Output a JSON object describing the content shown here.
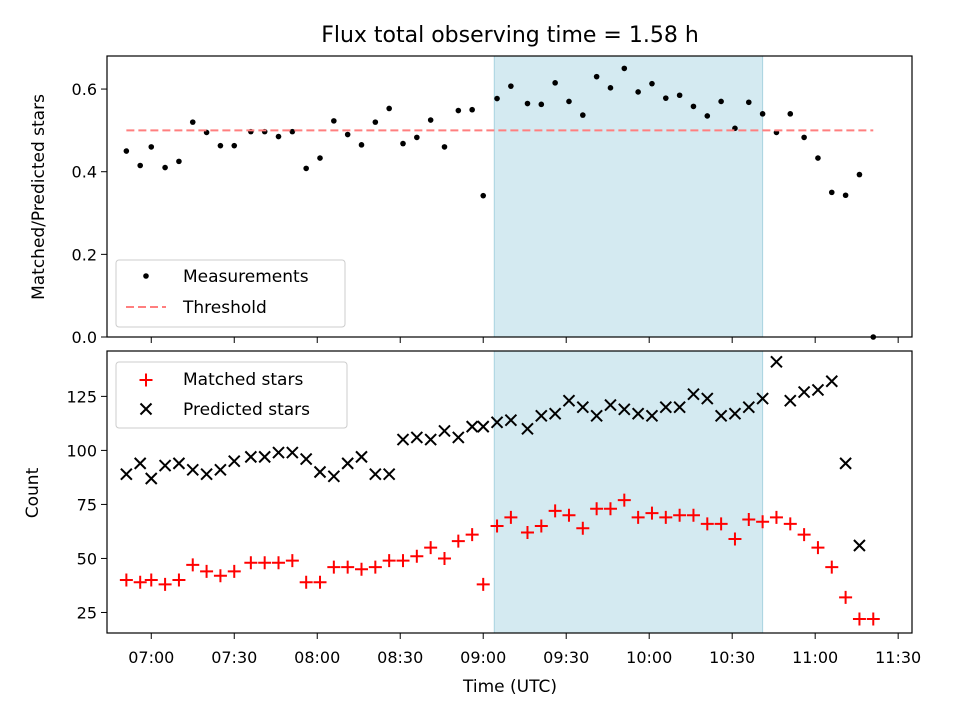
{
  "chart_data": [
    {
      "type": "scatter",
      "title": "Flux total observing time = 1.58 h",
      "xlabel": "",
      "ylabel": "Matched/Predicted stars",
      "xlim": [
        "06:44",
        "11:35"
      ],
      "ylim": [
        0,
        0.68
      ],
      "yticks": [
        0.0,
        0.2,
        0.4,
        0.6
      ],
      "ytick_labels": [
        "0.0",
        "0.2",
        "0.4",
        "0.6"
      ],
      "shaded_span": {
        "x_start": "09:04",
        "x_end": "10:41",
        "color": "#d4eaf1"
      },
      "legend_position": "lower left",
      "series": [
        {
          "name": "Measurements",
          "marker": "dot",
          "color": "#000000",
          "x": [
            "06:51",
            "06:56",
            "07:00",
            "07:05",
            "07:10",
            "07:15",
            "07:20",
            "07:25",
            "07:30",
            "07:36",
            "07:41",
            "07:46",
            "07:51",
            "07:56",
            "08:01",
            "08:06",
            "08:11",
            "08:16",
            "08:21",
            "08:26",
            "08:31",
            "08:36",
            "08:41",
            "08:46",
            "08:51",
            "08:56",
            "09:00",
            "09:05",
            "09:10",
            "09:16",
            "09:21",
            "09:26",
            "09:31",
            "09:36",
            "09:41",
            "09:46",
            "09:51",
            "09:56",
            "10:01",
            "10:06",
            "10:11",
            "10:16",
            "10:21",
            "10:26",
            "10:31",
            "10:36",
            "10:41",
            "10:46",
            "10:51",
            "10:56",
            "11:01",
            "11:06",
            "11:11",
            "11:16",
            "11:21"
          ],
          "y": [
            0.45,
            0.415,
            0.46,
            0.41,
            0.425,
            0.52,
            0.495,
            0.463,
            0.463,
            0.497,
            0.497,
            0.485,
            0.497,
            0.408,
            0.433,
            0.523,
            0.49,
            0.465,
            0.52,
            0.553,
            0.468,
            0.483,
            0.525,
            0.46,
            0.548,
            0.55,
            0.342,
            0.577,
            0.607,
            0.565,
            0.563,
            0.615,
            0.57,
            0.537,
            0.63,
            0.603,
            0.65,
            0.593,
            0.613,
            0.578,
            0.585,
            0.558,
            0.535,
            0.57,
            0.505,
            0.568,
            0.54,
            0.495,
            0.54,
            0.483,
            0.433,
            0.35,
            0.343,
            0.393,
            0.0
          ]
        },
        {
          "name": "Threshold",
          "style": "dashed-line",
          "color": "#ff7f7f",
          "x": [
            "06:51",
            "11:21"
          ],
          "y": [
            0.5,
            0.5
          ]
        }
      ]
    },
    {
      "type": "scatter",
      "xlabel": "Time (UTC)",
      "ylabel": "Count",
      "xlim": [
        "06:44",
        "11:35"
      ],
      "ylim": [
        15.5,
        146
      ],
      "xticks": [
        "07:00",
        "07:30",
        "08:00",
        "08:30",
        "09:00",
        "09:30",
        "10:00",
        "10:30",
        "11:00",
        "11:30"
      ],
      "yticks": [
        25,
        50,
        75,
        100,
        125
      ],
      "ytick_labels": [
        "25",
        "50",
        "75",
        "100",
        "125"
      ],
      "shaded_span": {
        "x_start": "09:04",
        "x_end": "10:41",
        "color": "#d4eaf1"
      },
      "legend_position": "upper left",
      "series": [
        {
          "name": "Matched stars",
          "marker": "plus",
          "color": "#ff0000",
          "x": [
            "06:51",
            "06:56",
            "07:00",
            "07:05",
            "07:10",
            "07:15",
            "07:20",
            "07:25",
            "07:30",
            "07:36",
            "07:41",
            "07:46",
            "07:51",
            "07:56",
            "08:01",
            "08:06",
            "08:11",
            "08:16",
            "08:21",
            "08:26",
            "08:31",
            "08:36",
            "08:41",
            "08:46",
            "08:51",
            "08:56",
            "09:00",
            "09:05",
            "09:10",
            "09:16",
            "09:21",
            "09:26",
            "09:31",
            "09:36",
            "09:41",
            "09:46",
            "09:51",
            "09:56",
            "10:01",
            "10:06",
            "10:11",
            "10:16",
            "10:21",
            "10:26",
            "10:31",
            "10:36",
            "10:41",
            "10:46",
            "10:51",
            "10:56",
            "11:01",
            "11:06",
            "11:11",
            "11:16",
            "11:21"
          ],
          "y": [
            40,
            39,
            40,
            38,
            40,
            47,
            44,
            42,
            44,
            48,
            48,
            48,
            49,
            39,
            39,
            46,
            46,
            45,
            46,
            49,
            49,
            51,
            55,
            50,
            58,
            61,
            38,
            65,
            69,
            62,
            65,
            72,
            70,
            64,
            73,
            73,
            77,
            69,
            71,
            69,
            70,
            70,
            66,
            66,
            59,
            68,
            67,
            69,
            66,
            61,
            55,
            46,
            32,
            22,
            22
          ]
        },
        {
          "name": "Predicted stars",
          "marker": "x",
          "color": "#000000",
          "x": [
            "06:51",
            "06:56",
            "07:00",
            "07:05",
            "07:10",
            "07:15",
            "07:20",
            "07:25",
            "07:30",
            "07:36",
            "07:41",
            "07:46",
            "07:51",
            "07:56",
            "08:01",
            "08:06",
            "08:11",
            "08:16",
            "08:21",
            "08:26",
            "08:31",
            "08:36",
            "08:41",
            "08:46",
            "08:51",
            "08:56",
            "09:00",
            "09:05",
            "09:10",
            "09:16",
            "09:21",
            "09:26",
            "09:31",
            "09:36",
            "09:41",
            "09:46",
            "09:51",
            "09:56",
            "10:01",
            "10:06",
            "10:11",
            "10:16",
            "10:21",
            "10:26",
            "10:31",
            "10:36",
            "10:41",
            "10:46",
            "10:51",
            "10:56",
            "11:01",
            "11:06",
            "11:11",
            "11:16"
          ],
          "y": [
            89,
            94,
            87,
            93,
            94,
            91,
            89,
            91,
            95,
            97,
            97,
            99,
            99,
            96,
            90,
            88,
            94,
            97,
            89,
            89,
            105,
            106,
            105,
            109,
            106,
            111,
            111,
            113,
            114,
            110,
            116,
            117,
            123,
            120,
            116,
            121,
            119,
            117,
            116,
            120,
            120,
            126,
            124,
            116,
            117,
            120,
            124,
            141,
            123,
            127,
            128,
            132,
            94,
            56
          ]
        }
      ]
    }
  ]
}
